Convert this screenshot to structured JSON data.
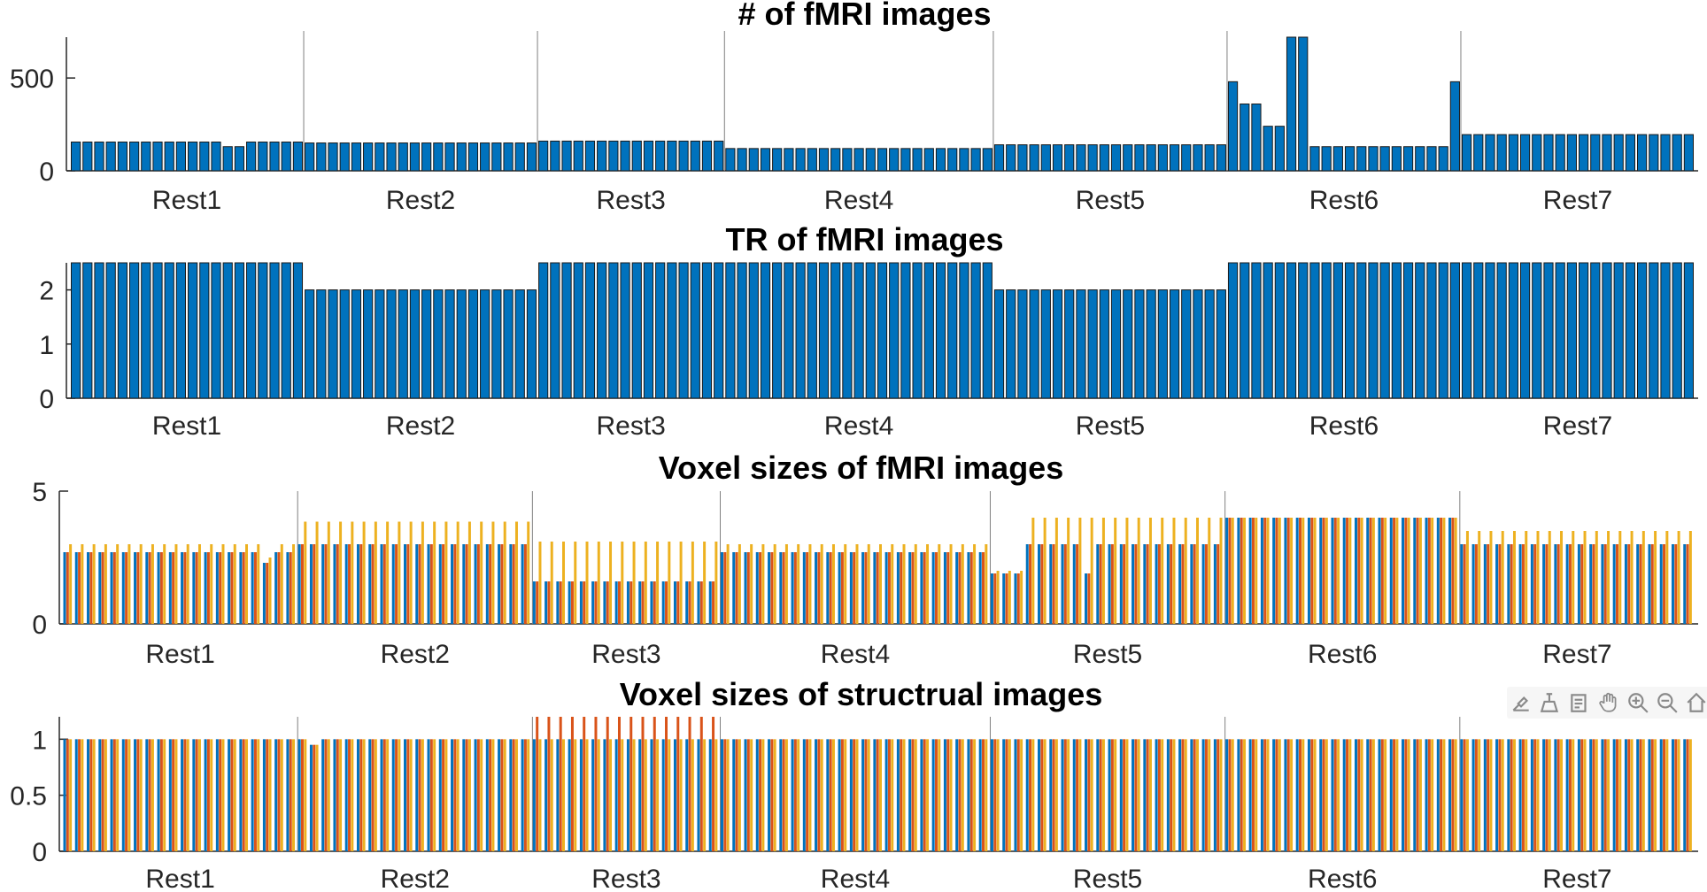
{
  "toolbar": [
    {
      "name": "brush-icon"
    },
    {
      "name": "data-cursor-icon"
    },
    {
      "name": "rotate-icon"
    },
    {
      "name": "pan-hand-icon"
    },
    {
      "name": "zoom-in-icon"
    },
    {
      "name": "zoom-out-icon"
    },
    {
      "name": "home-icon"
    }
  ],
  "chart_data": [
    {
      "type": "bar",
      "title": "# of fMRI images",
      "ylim": [
        0,
        720
      ],
      "yticks": [
        0,
        500
      ],
      "groups": [
        "Rest1",
        "Rest2",
        "Rest3",
        "Rest4",
        "Rest5",
        "Rest6",
        "Rest7"
      ],
      "group_sizes": [
        20,
        20,
        16,
        23,
        20,
        20,
        20
      ],
      "colors": [
        "#0072BD"
      ],
      "series": [
        {
          "values": [
            155,
            155,
            155,
            155,
            155,
            155,
            155,
            155,
            155,
            155,
            155,
            155,
            155,
            130,
            130,
            155,
            155,
            155,
            155,
            155,
            150,
            150,
            150,
            150,
            150,
            150,
            150,
            150,
            150,
            150,
            150,
            150,
            150,
            150,
            150,
            150,
            150,
            150,
            150,
            150,
            160,
            160,
            160,
            160,
            160,
            160,
            160,
            160,
            160,
            160,
            160,
            160,
            160,
            160,
            160,
            160,
            120,
            120,
            120,
            120,
            120,
            120,
            120,
            120,
            120,
            120,
            120,
            120,
            120,
            120,
            120,
            120,
            120,
            120,
            120,
            120,
            120,
            120,
            120,
            140,
            140,
            140,
            140,
            140,
            140,
            140,
            140,
            140,
            140,
            140,
            140,
            140,
            140,
            140,
            140,
            140,
            140,
            140,
            140,
            480,
            360,
            360,
            240,
            240,
            720,
            720,
            130,
            130,
            130,
            130,
            130,
            130,
            130,
            130,
            130,
            130,
            130,
            130,
            480,
            195,
            195,
            195,
            195,
            195,
            195,
            195,
            195,
            195,
            195,
            195,
            195,
            195,
            195,
            195,
            195,
            195,
            195,
            195,
            195
          ]
        }
      ]
    },
    {
      "type": "bar",
      "title": "TR of fMRI images",
      "ylim": [
        0,
        2.5
      ],
      "yticks": [
        0,
        1,
        2
      ],
      "groups": [
        "Rest1",
        "Rest2",
        "Rest3",
        "Rest4",
        "Rest5",
        "Rest6",
        "Rest7"
      ],
      "group_sizes": [
        20,
        20,
        16,
        23,
        20,
        20,
        20
      ],
      "colors": [
        "#0072BD"
      ],
      "series": [
        {
          "values": [
            2.5,
            2.5,
            2.5,
            2.5,
            2.5,
            2.5,
            2.5,
            2.5,
            2.5,
            2.5,
            2.5,
            2.5,
            2.5,
            2.5,
            2.5,
            2.5,
            2.5,
            2.5,
            2.5,
            2.5,
            2,
            2,
            2,
            2,
            2,
            2,
            2,
            2,
            2,
            2,
            2,
            2,
            2,
            2,
            2,
            2,
            2,
            2,
            2,
            2,
            2.5,
            2.5,
            2.5,
            2.5,
            2.5,
            2.5,
            2.5,
            2.5,
            2.5,
            2.5,
            2.5,
            2.5,
            2.5,
            2.5,
            2.5,
            2.5,
            2.5,
            2.5,
            2.5,
            2.5,
            2.5,
            2.5,
            2.5,
            2.5,
            2.5,
            2.5,
            2.5,
            2.5,
            2.5,
            2.5,
            2.5,
            2.5,
            2.5,
            2.5,
            2.5,
            2.5,
            2.5,
            2.5,
            2.5,
            2,
            2,
            2,
            2,
            2,
            2,
            2,
            2,
            2,
            2,
            2,
            2,
            2,
            2,
            2,
            2,
            2,
            2,
            2,
            2,
            2.5,
            2.5,
            2.5,
            2.5,
            2.5,
            2.5,
            2.5,
            2.5,
            2.5,
            2.5,
            2.5,
            2.5,
            2.5,
            2.5,
            2.5,
            2.5,
            2.5,
            2.5,
            2.5,
            2.5,
            2.5,
            2.5,
            2.5,
            2.5,
            2.5,
            2.5,
            2.5,
            2.5,
            2.5,
            2.5,
            2.5,
            2.5,
            2.5,
            2.5,
            2.5,
            2.5,
            2.5,
            2.5,
            2.5,
            2.5
          ]
        }
      ]
    },
    {
      "type": "bar",
      "title": "Voxel sizes of fMRI images",
      "ylim": [
        0,
        5
      ],
      "yticks": [
        0,
        5
      ],
      "groups": [
        "Rest1",
        "Rest2",
        "Rest3",
        "Rest4",
        "Rest5",
        "Rest6",
        "Rest7"
      ],
      "group_sizes": [
        20,
        20,
        16,
        23,
        20,
        20,
        20
      ],
      "colors": [
        "#0072BD",
        "#D95319",
        "#EDB120"
      ],
      "group_values": [
        [
          2.7,
          2.7,
          3.0
        ],
        [
          3.0,
          3.0,
          3.85
        ],
        [
          1.6,
          1.6,
          3.1
        ],
        [
          2.7,
          2.7,
          3.0
        ],
        [
          3.0,
          3.0,
          4.0
        ],
        [
          4.0,
          4.0,
          4.0
        ],
        [
          3.0,
          3.0,
          3.5
        ]
      ],
      "exceptions": [
        {
          "group": "Rest1",
          "index": 17,
          "values": [
            2.3,
            2.3,
            2.5
          ]
        },
        {
          "group": "Rest5",
          "index": 0,
          "values": [
            1.9,
            1.9,
            2.0
          ]
        },
        {
          "group": "Rest5",
          "index": 1,
          "values": [
            1.9,
            1.9,
            2.0
          ]
        },
        {
          "group": "Rest5",
          "index": 2,
          "values": [
            1.9,
            1.9,
            2.0
          ]
        },
        {
          "group": "Rest5",
          "index": 8,
          "values": [
            1.9,
            1.9,
            4.0
          ]
        }
      ]
    },
    {
      "type": "bar",
      "title": "Voxel sizes of structrual images",
      "ylim": [
        0,
        1.2
      ],
      "yticks": [
        0,
        0.5,
        1
      ],
      "groups": [
        "Rest1",
        "Rest2",
        "Rest3",
        "Rest4",
        "Rest5",
        "Rest6",
        "Rest7"
      ],
      "group_sizes": [
        20,
        20,
        16,
        23,
        20,
        20,
        20
      ],
      "colors": [
        "#0072BD",
        "#D95319",
        "#EDB120"
      ],
      "group_values": [
        [
          1,
          1,
          1
        ],
        [
          1,
          1,
          1
        ],
        [
          1,
          1.2,
          1
        ],
        [
          1,
          1,
          1
        ],
        [
          1,
          1,
          1
        ],
        [
          1,
          1,
          1
        ],
        [
          1,
          1,
          1
        ]
      ],
      "exceptions": [
        {
          "group": "Rest2",
          "index": 1,
          "values": [
            0.95,
            0.95,
            0.95
          ]
        }
      ]
    }
  ]
}
